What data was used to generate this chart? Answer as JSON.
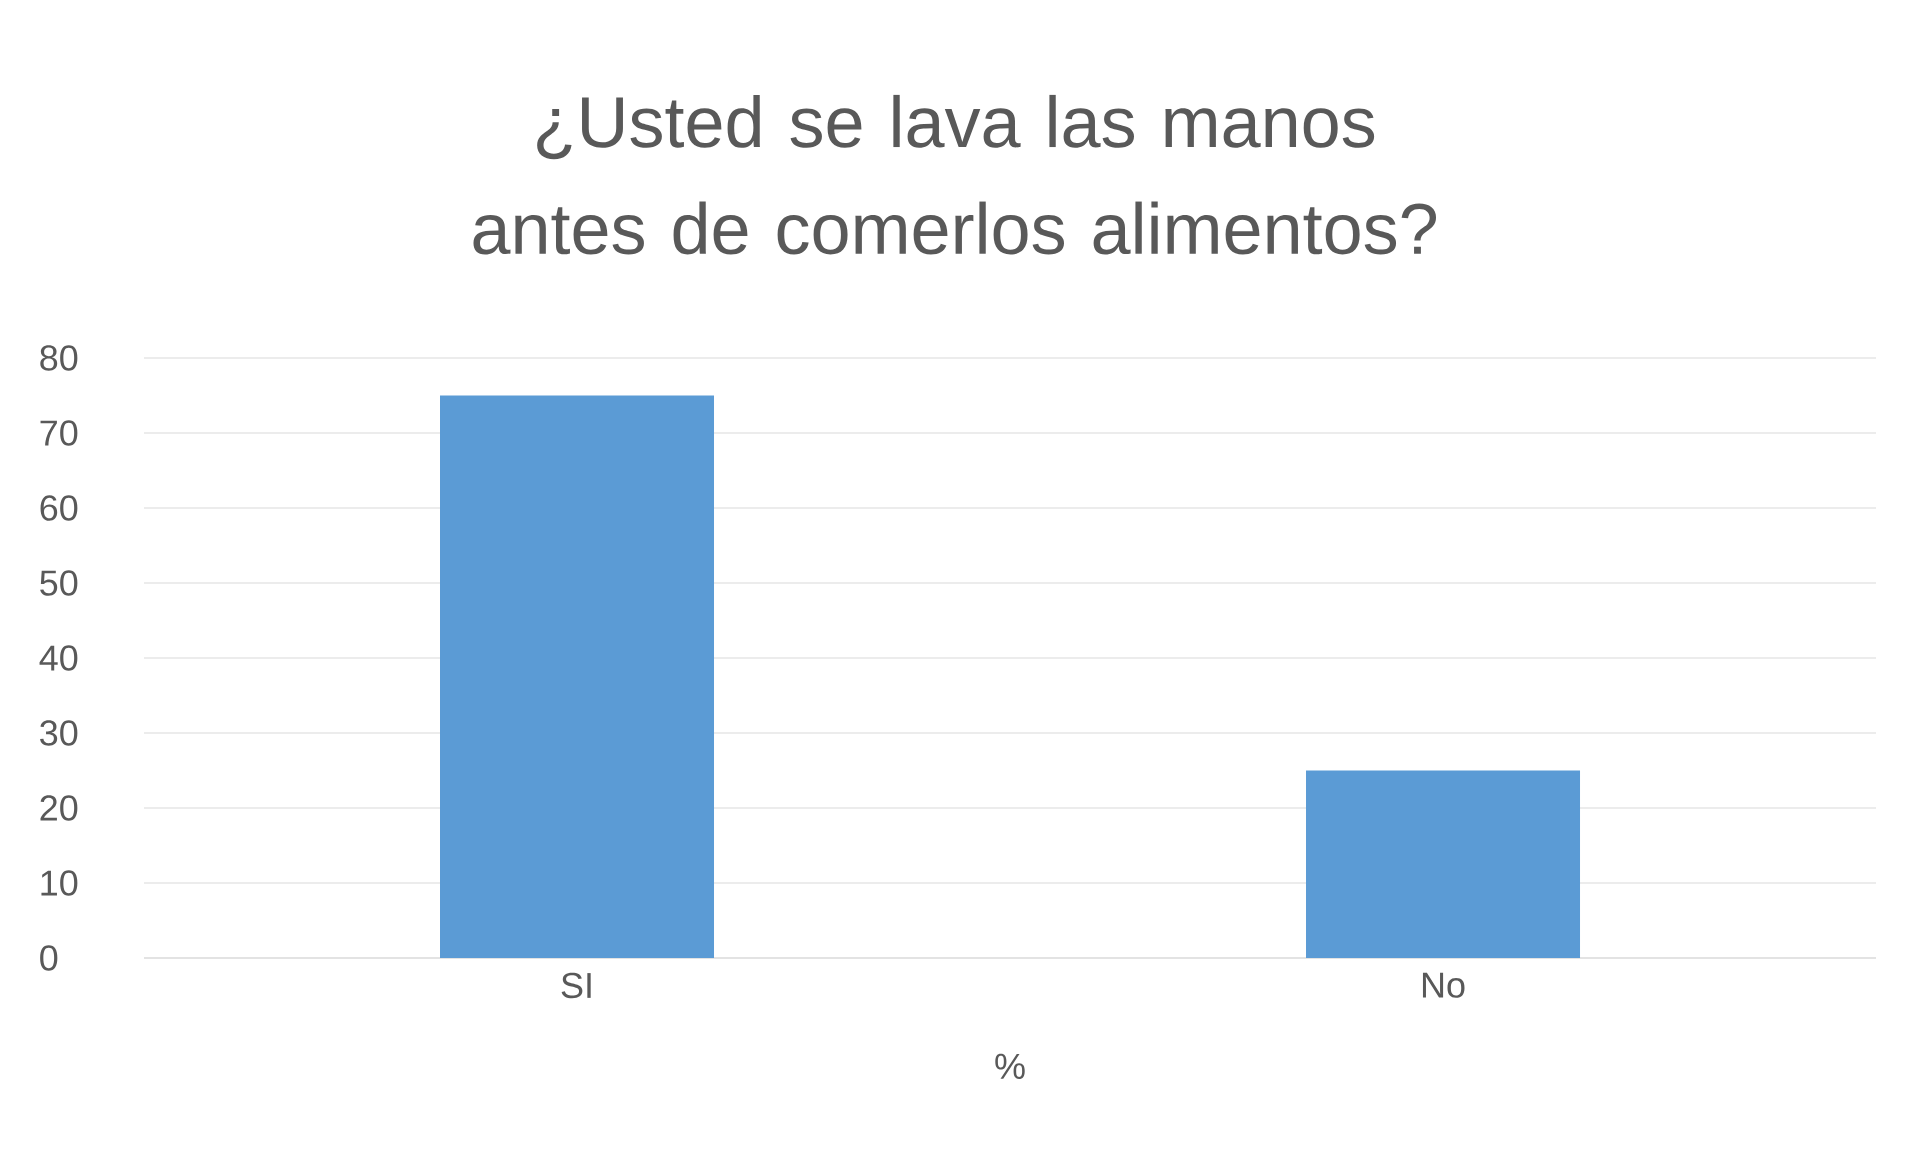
{
  "chart_data": {
    "type": "bar",
    "title": "¿Usted se lava las manos antes de comerlos alimentos?",
    "xlabel": "%",
    "categories": [
      "SI",
      "No"
    ],
    "values": [
      75,
      25
    ],
    "color": "#5b9bd5",
    "ylim": [
      0,
      80
    ],
    "yticks": [
      0,
      10,
      20,
      30,
      40,
      50,
      60,
      70,
      80
    ],
    "grid": "y"
  }
}
